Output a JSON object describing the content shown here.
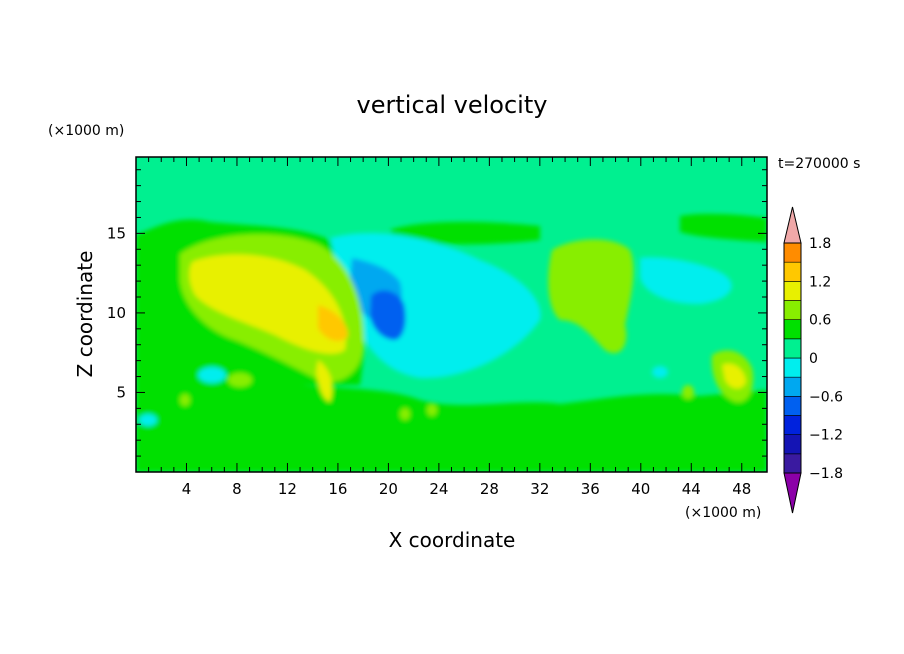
{
  "chart_data": {
    "type": "heatmap",
    "title": "vertical velocity",
    "xlabel": "X coordinate",
    "ylabel": "Z coordinate",
    "x_unit": "(×1000 m)",
    "y_unit": "(×1000 m)",
    "time_label": "t=270000 s",
    "xlim": [
      0,
      50
    ],
    "ylim": [
      0,
      19.8
    ],
    "x_ticks": [
      "4",
      "8",
      "12",
      "16",
      "20",
      "24",
      "28",
      "32",
      "36",
      "40",
      "44",
      "48"
    ],
    "y_ticks": [
      "5",
      "10",
      "15"
    ],
    "colorbar": {
      "tick_labels": [
        "1.8",
        "1.2",
        "0.6",
        "0",
        "−0.6",
        "−1.2",
        "−1.8"
      ],
      "levels": [
        -1.8,
        -1.5,
        -1.2,
        -0.9,
        -0.6,
        -0.3,
        0,
        0.3,
        0.6,
        0.9,
        1.2,
        1.5,
        1.8
      ],
      "colors": [
        "#8b00a8",
        "#3a1aa0",
        "#1414b4",
        "#0022dd",
        "#0060f0",
        "#00a8f0",
        "#00eeee",
        "#00f090",
        "#00e000",
        "#88ee00",
        "#e8f000",
        "#ffc800",
        "#ff8c00",
        "#ff3000",
        "#f0a8a8"
      ]
    },
    "features": [
      {
        "kind": "updraft",
        "x": 12,
        "z": 11.5,
        "max": 0.9
      },
      {
        "kind": "updraft",
        "x": 16,
        "z": 9.5,
        "max": 1.0
      },
      {
        "kind": "downdraft",
        "x": 20,
        "z": 10.5,
        "min": -0.7
      },
      {
        "kind": "downdraft",
        "x": 26,
        "z": 9.5,
        "min": -0.3
      },
      {
        "kind": "updraft",
        "x": 37,
        "z": 11,
        "max": 0.5
      },
      {
        "kind": "updraft",
        "x": 47,
        "z": 6.5,
        "max": 0.9
      }
    ]
  }
}
